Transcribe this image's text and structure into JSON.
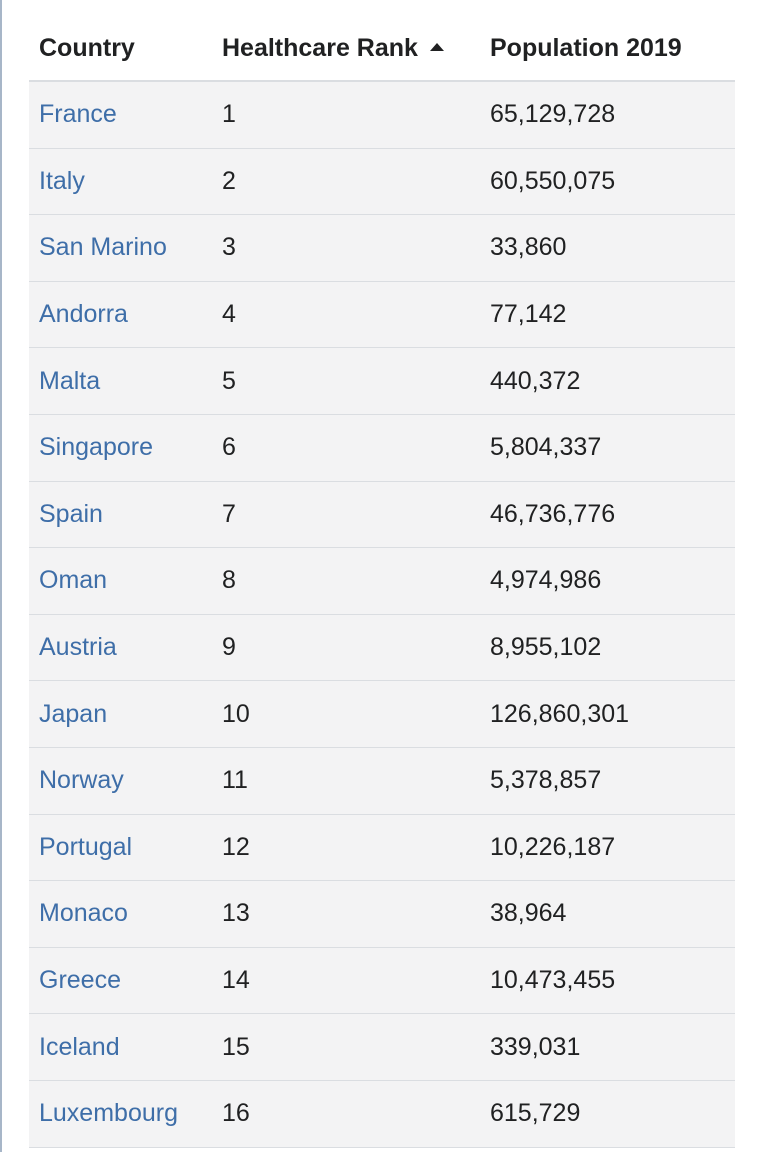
{
  "table": {
    "headers": {
      "country": "Country",
      "rank": "Healthcare Rank",
      "population": "Population 2019"
    },
    "sort": {
      "column": "Healthcare Rank",
      "direction": "ascending",
      "icon": "sort-ascending-icon"
    },
    "rows": [
      {
        "country": "France",
        "rank": "1",
        "population": "65,129,728"
      },
      {
        "country": "Italy",
        "rank": "2",
        "population": "60,550,075"
      },
      {
        "country": "San Marino",
        "rank": "3",
        "population": "33,860"
      },
      {
        "country": "Andorra",
        "rank": "4",
        "population": "77,142"
      },
      {
        "country": "Malta",
        "rank": "5",
        "population": "440,372"
      },
      {
        "country": "Singapore",
        "rank": "6",
        "population": "5,804,337"
      },
      {
        "country": "Spain",
        "rank": "7",
        "population": "46,736,776"
      },
      {
        "country": "Oman",
        "rank": "8",
        "population": "4,974,986"
      },
      {
        "country": "Austria",
        "rank": "9",
        "population": "8,955,102"
      },
      {
        "country": "Japan",
        "rank": "10",
        "population": "126,860,301"
      },
      {
        "country": "Norway",
        "rank": "11",
        "population": "5,378,857"
      },
      {
        "country": "Portugal",
        "rank": "12",
        "population": "10,226,187"
      },
      {
        "country": "Monaco",
        "rank": "13",
        "population": "38,964"
      },
      {
        "country": "Greece",
        "rank": "14",
        "population": "10,473,455"
      },
      {
        "country": "Iceland",
        "rank": "15",
        "population": "339,031"
      },
      {
        "country": "Luxembourg",
        "rank": "16",
        "population": "615,729"
      }
    ]
  },
  "colors": {
    "link": "#3e6ea8",
    "text": "#202122",
    "row_background": "#f3f3f4",
    "border": "#dadde1"
  }
}
